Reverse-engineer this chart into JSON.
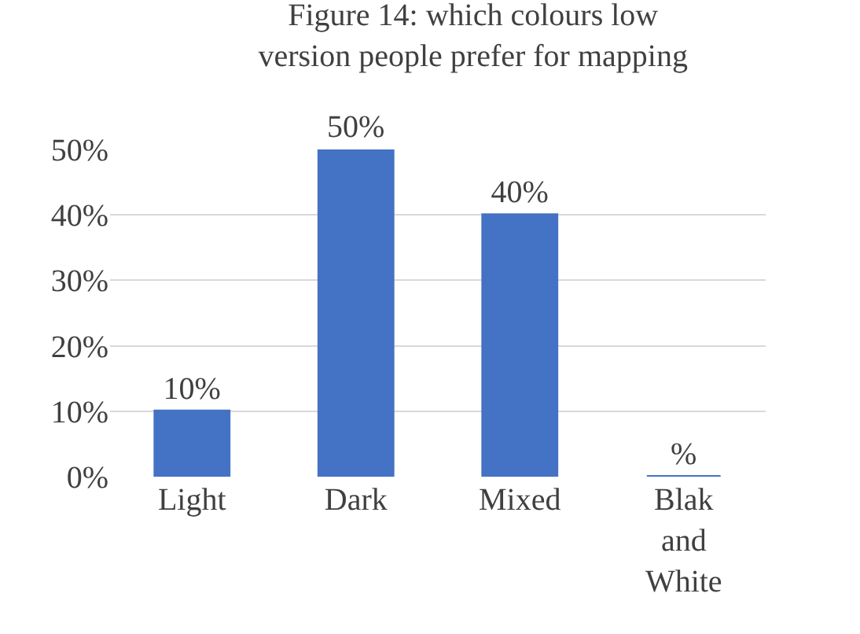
{
  "chart_data": {
    "type": "bar",
    "title": "Figure 14: which colours low version people prefer for mapping",
    "categories": [
      "Light",
      "Dark",
      "Mixed",
      "Blak and White"
    ],
    "values": [
      10,
      50,
      40,
      0
    ],
    "value_labels": [
      "10%",
      "50%",
      "40%",
      "%"
    ],
    "color": "#4472c4",
    "ylim": [
      0,
      50
    ],
    "yticks": [
      {
        "value": 0,
        "label": "0%"
      },
      {
        "value": 10,
        "label": "10%"
      },
      {
        "value": 20,
        "label": "20%"
      },
      {
        "value": 30,
        "label": "30%"
      },
      {
        "value": 40,
        "label": "40%"
      },
      {
        "value": 50,
        "label": "50%"
      }
    ],
    "grid": "y"
  }
}
